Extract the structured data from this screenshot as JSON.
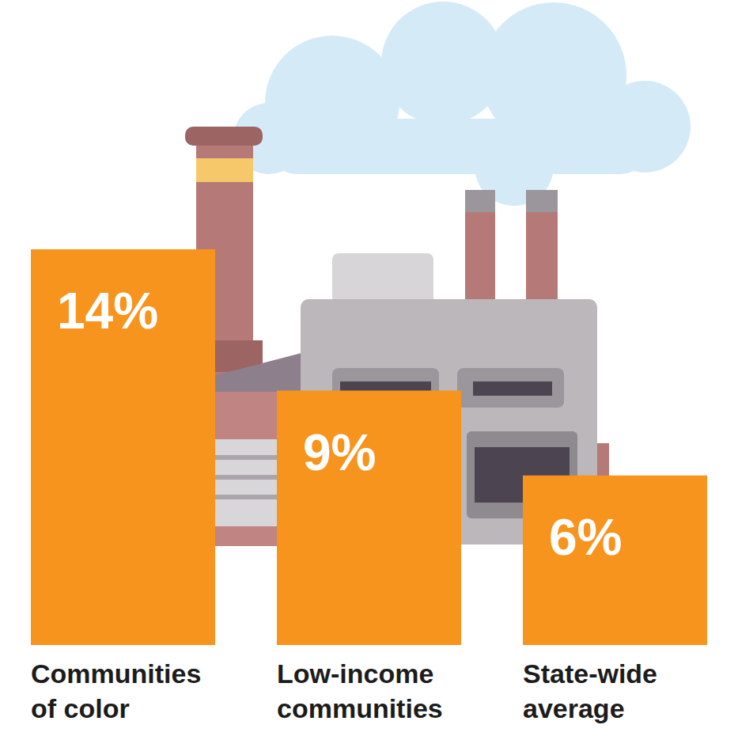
{
  "chart_data": {
    "type": "bar",
    "categories": [
      "Communities of color",
      "Low-income communities",
      "State-wide average"
    ],
    "values": [
      14,
      9,
      6
    ],
    "value_labels": [
      "14%",
      "9%",
      "6%"
    ],
    "color": "#f7941d",
    "ylim": [
      0,
      14
    ],
    "data_labels": true,
    "tick_labels": "x"
  }
}
